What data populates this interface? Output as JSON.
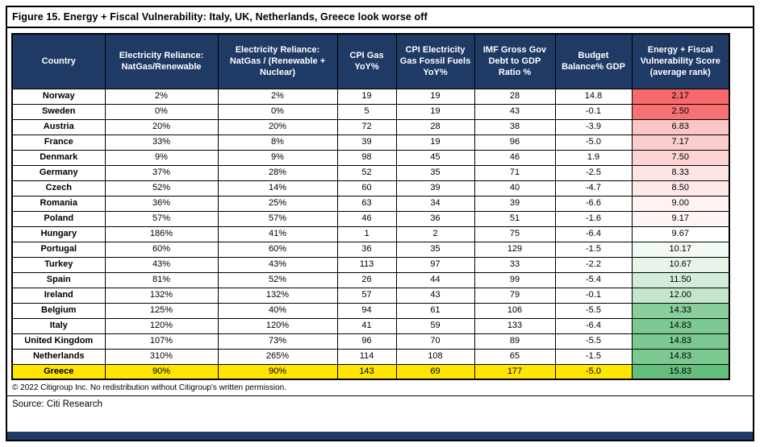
{
  "figure": {
    "copyright": "© 2022 Citigroup Inc. No redistribution without Citigroup's written permission.",
    "source": "Source: Citi Research"
  },
  "colors": {
    "header_bg": "#1F3A64",
    "header_text": "#FFFFFF",
    "highlight_row_bg": "#FFE600",
    "border": "#000000",
    "bottom_bar": "#1F3A64",
    "score_scale_min": "#F8696B",
    "score_scale_mid": "#FFFFFF",
    "score_scale_max": "#63BE7B"
  },
  "chart_data": {
    "type": "table",
    "title": "Figure 15. Energy + Fiscal Vulnerability: Italy, UK, Netherlands, Greece look worse off",
    "columns": [
      "Country",
      "Electricity Reliance: NatGas/Renewable",
      "Electricity Reliance: NatGas / (Renewable + Nuclear)",
      "CPI Gas YoY%",
      "CPI Electricity Gas Fossil Fuels YoY%",
      "IMF Gross Gov Debt to GDP Ratio %",
      "Budget Balance% GDP",
      "Energy + Fiscal Vulnerability Score (average rank)"
    ],
    "rows": [
      {
        "country": "Norway",
        "values": [
          "2%",
          "2%",
          "19",
          "19",
          "28",
          "14.8",
          "2.17"
        ],
        "score_color": "#F8696B",
        "highlight": false
      },
      {
        "country": "Sweden",
        "values": [
          "0%",
          "0%",
          "5",
          "19",
          "43",
          "-0.1",
          "2.50"
        ],
        "score_color": "#F87173",
        "highlight": false
      },
      {
        "country": "Austria",
        "values": [
          "20%",
          "20%",
          "72",
          "28",
          "38",
          "-3.9",
          "6.83"
        ],
        "score_color": "#FCC6C7",
        "highlight": false
      },
      {
        "country": "France",
        "values": [
          "33%",
          "8%",
          "39",
          "19",
          "96",
          "-5.0",
          "7.17"
        ],
        "score_color": "#FCCDCE",
        "highlight": false
      },
      {
        "country": "Denmark",
        "values": [
          "9%",
          "9%",
          "98",
          "45",
          "46",
          "1.9",
          "7.50"
        ],
        "score_color": "#FDD4D4",
        "highlight": false
      },
      {
        "country": "Germany",
        "values": [
          "37%",
          "28%",
          "52",
          "35",
          "71",
          "-2.5",
          "8.33"
        ],
        "score_color": "#FDE4E5",
        "highlight": false
      },
      {
        "country": "Czech",
        "values": [
          "52%",
          "14%",
          "60",
          "39",
          "40",
          "-4.7",
          "8.50"
        ],
        "score_color": "#FEE8E8",
        "highlight": false
      },
      {
        "country": "Romania",
        "values": [
          "36%",
          "25%",
          "63",
          "34",
          "39",
          "-6.6",
          "9.00"
        ],
        "score_color": "#FEF2F2",
        "highlight": false
      },
      {
        "country": "Poland",
        "values": [
          "57%",
          "57%",
          "46",
          "36",
          "51",
          "-1.6",
          "9.17"
        ],
        "score_color": "#FEF5F5",
        "highlight": false
      },
      {
        "country": "Hungary",
        "values": [
          "186%",
          "41%",
          "1",
          "2",
          "75",
          "-6.4",
          "9.67"
        ],
        "score_color": "#FFFFFF",
        "highlight": false
      },
      {
        "country": "Portugal",
        "values": [
          "60%",
          "60%",
          "36",
          "35",
          "129",
          "-1.5",
          "10.17"
        ],
        "score_color": "#F2FAF4",
        "highlight": false
      },
      {
        "country": "Turkey",
        "values": [
          "43%",
          "43%",
          "113",
          "97",
          "33",
          "-2.2",
          "10.67"
        ],
        "score_color": "#E6F4EA",
        "highlight": false
      },
      {
        "country": "Spain",
        "values": [
          "81%",
          "52%",
          "26",
          "44",
          "99",
          "-5.4",
          "11.50"
        ],
        "score_color": "#D1ECD8",
        "highlight": false
      },
      {
        "country": "Ireland",
        "values": [
          "132%",
          "132%",
          "57",
          "43",
          "79",
          "-0.1",
          "12.00"
        ],
        "score_color": "#C4E6CD",
        "highlight": false
      },
      {
        "country": "Belgium",
        "values": [
          "125%",
          "40%",
          "94",
          "61",
          "106",
          "-5.5",
          "14.33"
        ],
        "score_color": "#89CE9B",
        "highlight": false
      },
      {
        "country": "Italy",
        "values": [
          "120%",
          "120%",
          "41",
          "59",
          "133",
          "-6.4",
          "14.83"
        ],
        "score_color": "#7CC890",
        "highlight": false
      },
      {
        "country": "United Kingdom",
        "values": [
          "107%",
          "73%",
          "96",
          "70",
          "89",
          "-5.5",
          "14.83"
        ],
        "score_color": "#7CC890",
        "highlight": false
      },
      {
        "country": "Netherlands",
        "values": [
          "310%",
          "265%",
          "114",
          "108",
          "65",
          "-1.5",
          "14.83"
        ],
        "score_color": "#7CC890",
        "highlight": false
      },
      {
        "country": "Greece",
        "values": [
          "90%",
          "90%",
          "143",
          "69",
          "177",
          "-5.0",
          "15.83"
        ],
        "score_color": "#63BE7B",
        "highlight": true
      }
    ]
  }
}
